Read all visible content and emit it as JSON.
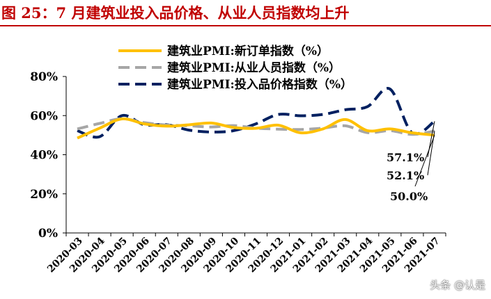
{
  "figure_title": "图 25：7 月建筑业投入品价格、从业人员指数均上升",
  "watermark": "头条 @认是",
  "chart_data": {
    "type": "line",
    "title": "",
    "xlabel": "",
    "ylabel": "",
    "ylim": [
      0,
      80
    ],
    "y_ticks": [
      0,
      20,
      40,
      60,
      80
    ],
    "y_tick_labels": [
      "0%",
      "20%",
      "40%",
      "60%",
      "80%"
    ],
    "grid": false,
    "legend_position": "top",
    "categories": [
      "2020-03",
      "2020-04",
      "2020-05",
      "2020-06",
      "2020-07",
      "2020-08",
      "2020-09",
      "2020-10",
      "2020-11",
      "2020-12",
      "2021-01",
      "2021-02",
      "2021-03",
      "2021-04",
      "2021-05",
      "2021-06",
      "2021-07"
    ],
    "series": [
      {
        "name": "建筑业PMI:新订单指数（%）",
        "color": "#ffc000",
        "dash": "solid",
        "values": [
          48.5,
          53.6,
          58.3,
          55.8,
          54.6,
          55.3,
          56.2,
          53.9,
          53.5,
          55.1,
          51.2,
          53.2,
          58.0,
          52.3,
          53.2,
          51.2,
          50.0
        ]
      },
      {
        "name": "建筑业PMI:从业人员指数（%）",
        "color": "#a6a6a6",
        "dash": "dashed",
        "values": [
          53.2,
          56.0,
          58.4,
          56.4,
          55.2,
          54.8,
          54.2,
          54.9,
          53.6,
          53.1,
          52.9,
          53.6,
          54.8,
          51.3,
          52.3,
          50.4,
          52.1
        ]
      },
      {
        "name": "建筑业PMI:投入品价格指数（%）",
        "color": "#002060",
        "dash": "dashed",
        "values": [
          52.3,
          49.2,
          60.0,
          55.3,
          55.4,
          52.6,
          51.6,
          52.3,
          55.8,
          60.6,
          59.9,
          60.6,
          63.0,
          64.6,
          73.6,
          51.1,
          57.1
        ]
      }
    ],
    "annotations": [
      "57.1%",
      "52.1%",
      "50.0%"
    ]
  }
}
